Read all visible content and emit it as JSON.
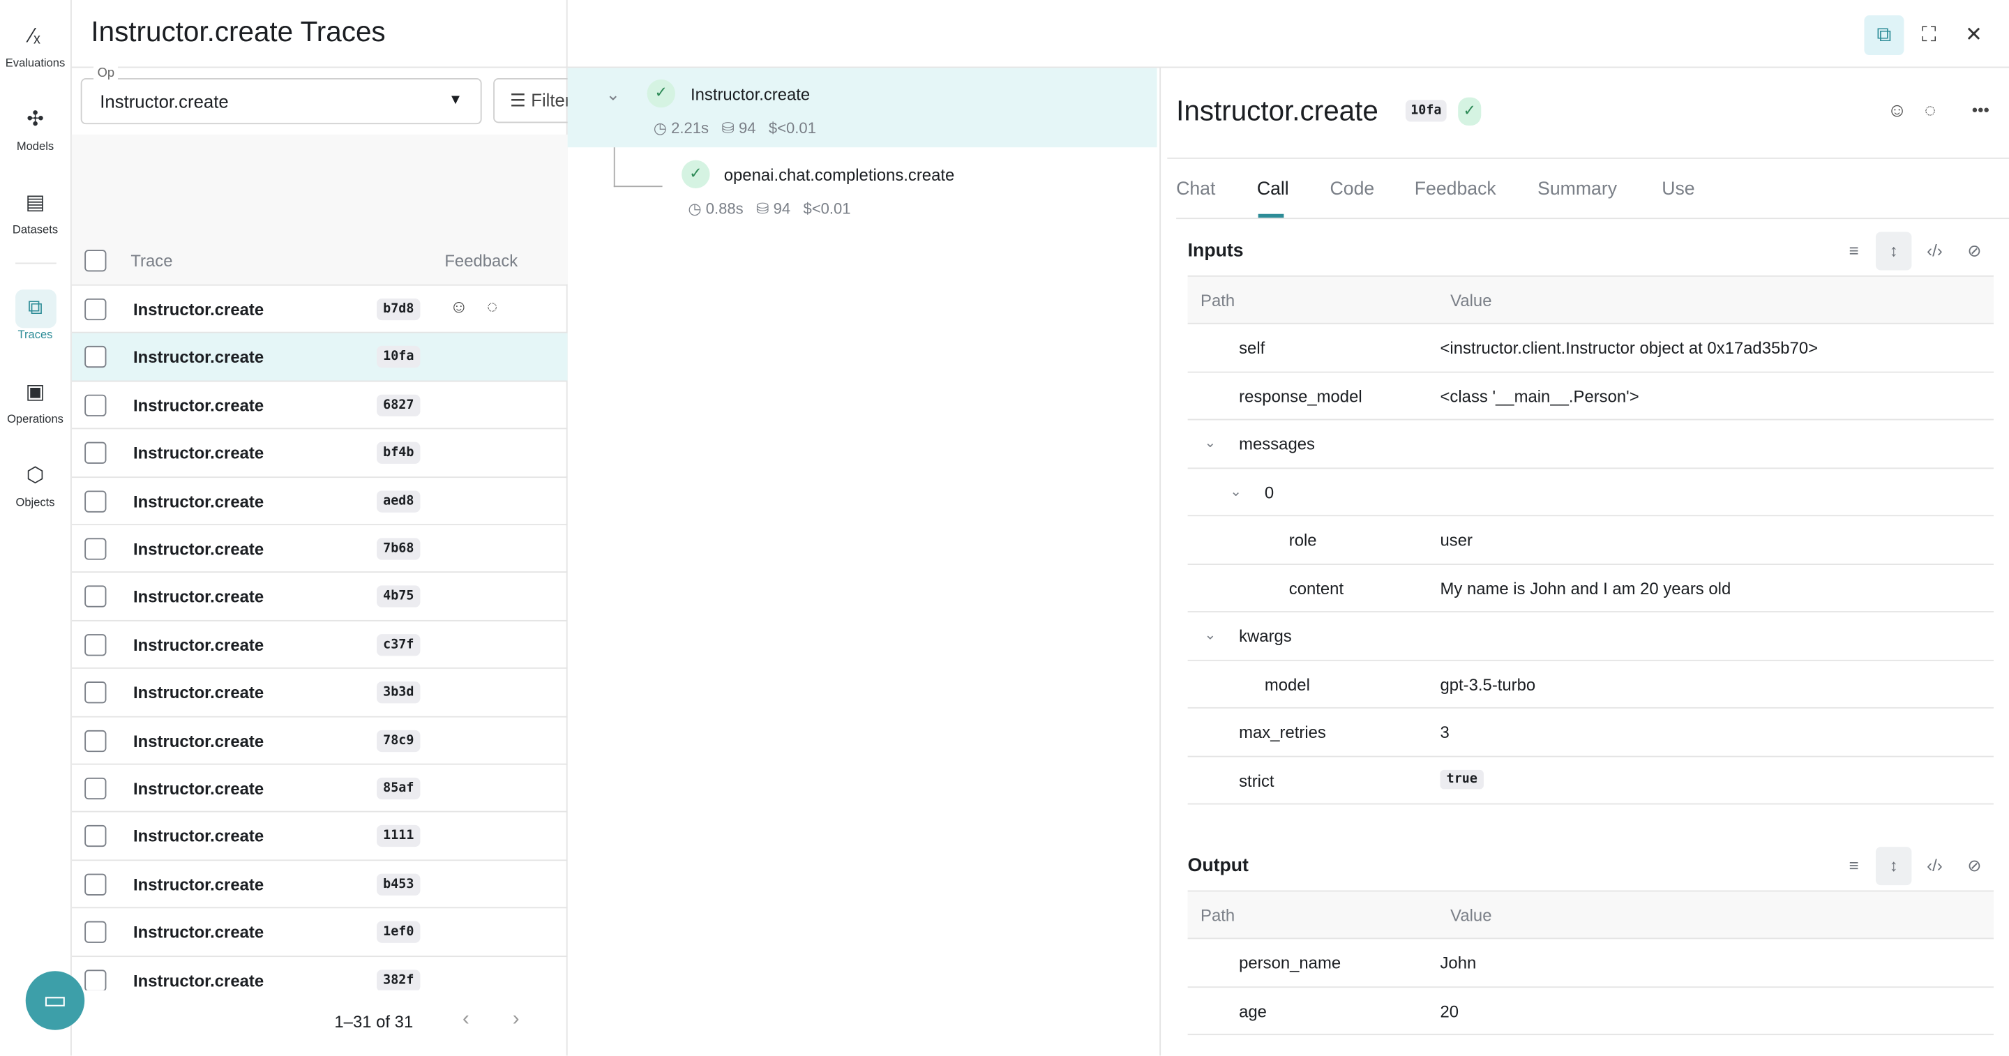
{
  "nav": {
    "items": [
      {
        "label": "Evaluations",
        "icon": "evaluations-icon"
      },
      {
        "label": "Models",
        "icon": "models-icon"
      },
      {
        "label": "Datasets",
        "icon": "datasets-icon"
      },
      {
        "label": "Traces",
        "icon": "traces-icon",
        "selected": true
      },
      {
        "label": "Operations",
        "icon": "operations-icon"
      },
      {
        "label": "Objects",
        "icon": "objects-icon"
      }
    ]
  },
  "list": {
    "title": "Instructor.create Traces",
    "op_label": "Op",
    "op_value": "Instructor.create",
    "filter_label": "Filter",
    "columns": {
      "trace": "Trace",
      "feedback": "Feedback"
    },
    "rows": [
      {
        "name": "Instructor.create",
        "id": "b7d8"
      },
      {
        "name": "Instructor.create",
        "id": "10fa",
        "selected": true
      },
      {
        "name": "Instructor.create",
        "id": "6827"
      },
      {
        "name": "Instructor.create",
        "id": "bf4b"
      },
      {
        "name": "Instructor.create",
        "id": "aed8"
      },
      {
        "name": "Instructor.create",
        "id": "7b68"
      },
      {
        "name": "Instructor.create",
        "id": "4b75"
      },
      {
        "name": "Instructor.create",
        "id": "c37f"
      },
      {
        "name": "Instructor.create",
        "id": "3b3d"
      },
      {
        "name": "Instructor.create",
        "id": "78c9"
      },
      {
        "name": "Instructor.create",
        "id": "85af"
      },
      {
        "name": "Instructor.create",
        "id": "1111"
      },
      {
        "name": "Instructor.create",
        "id": "b453"
      },
      {
        "name": "Instructor.create",
        "id": "1ef0"
      },
      {
        "name": "Instructor.create",
        "id": "382f"
      }
    ],
    "pagination": "1–31 of 31"
  },
  "tree": {
    "nodes": [
      {
        "name": "Instructor.create",
        "latency": "2.21s",
        "tokens": "94",
        "cost": "$<0.01"
      },
      {
        "name": "openai.chat.completions.create",
        "latency": "0.88s",
        "tokens": "94",
        "cost": "$<0.01"
      }
    ]
  },
  "detail": {
    "title": "Instructor.create",
    "id": "10fa",
    "tabs": [
      "Chat",
      "Call",
      "Code",
      "Feedback",
      "Summary",
      "Use"
    ],
    "active_tab": "Call",
    "inputs_label": "Inputs",
    "output_label": "Output",
    "path_col": "Path",
    "value_col": "Value",
    "inputs": [
      {
        "path": "self",
        "value": "<instructor.client.Instructor object at 0x17ad35b70>"
      },
      {
        "path": "response_model",
        "value": "<class '__main__.Person'>"
      },
      {
        "path": "messages",
        "value": ""
      },
      {
        "path": "0",
        "value": ""
      },
      {
        "path": "role",
        "value": "user"
      },
      {
        "path": "content",
        "value": "My name is John and I am 20 years old"
      },
      {
        "path": "kwargs",
        "value": ""
      },
      {
        "path": "model",
        "value": "gpt-3.5-turbo"
      },
      {
        "path": "max_retries",
        "value": "3"
      },
      {
        "path": "strict",
        "value": "true"
      }
    ],
    "outputs": [
      {
        "path": "person_name",
        "value": "John"
      },
      {
        "path": "age",
        "value": "20"
      }
    ]
  },
  "colors": {
    "accent": "#2d8c97",
    "selected_bg": "#e5f6f7",
    "success": "#2e8a57"
  }
}
